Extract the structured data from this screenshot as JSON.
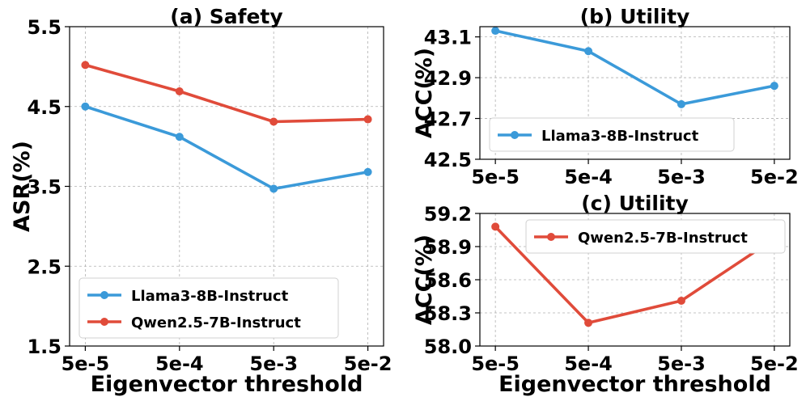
{
  "colors": {
    "llama": "#3b9ad9",
    "qwen": "#e04b3a"
  },
  "chart_data": [
    {
      "id": "a",
      "type": "line",
      "title": "(a) Safety",
      "xlabel": "Eigenvector threshold",
      "ylabel": "ASR(%)",
      "categories": [
        "5e-5",
        "5e-4",
        "5e-3",
        "5e-2"
      ],
      "ylim": [
        1.5,
        5.5
      ],
      "yticks": [
        "1.5",
        "2.5",
        "3.5",
        "4.5",
        "5.5"
      ],
      "legend_position": "lower-left",
      "series": [
        {
          "name": "Llama3-8B-Instruct",
          "color_key": "llama",
          "values": [
            4.5,
            4.12,
            3.47,
            3.68
          ]
        },
        {
          "name": "Qwen2.5-7B-Instruct",
          "color_key": "qwen",
          "values": [
            5.02,
            4.69,
            4.31,
            4.34
          ]
        }
      ]
    },
    {
      "id": "b",
      "type": "line",
      "title": "(b) Utility",
      "xlabel": "",
      "ylabel": "ACC(%)",
      "categories": [
        "5e-5",
        "5e-4",
        "5e-3",
        "5e-2"
      ],
      "ylim": [
        42.5,
        43.15
      ],
      "yticks": [
        "42.5",
        "42.7",
        "42.9",
        "43.1"
      ],
      "legend_position": "lower-left",
      "series": [
        {
          "name": "Llama3-8B-Instruct",
          "color_key": "llama",
          "values": [
            43.13,
            43.03,
            42.77,
            42.86
          ]
        }
      ]
    },
    {
      "id": "c",
      "type": "line",
      "title": "(c) Utility",
      "xlabel": "Eigenvector threshold",
      "ylabel": "ACC(%)",
      "categories": [
        "5e-5",
        "5e-4",
        "5e-3",
        "5e-2"
      ],
      "ylim": [
        58.0,
        59.2
      ],
      "yticks": [
        "58.0",
        "58.3",
        "58.6",
        "58.9",
        "59.2"
      ],
      "legend_position": "upper-right",
      "series": [
        {
          "name": "Qwen2.5-7B-Instruct",
          "color_key": "qwen",
          "values": [
            59.08,
            58.21,
            58.41,
            58.97
          ]
        }
      ]
    }
  ]
}
